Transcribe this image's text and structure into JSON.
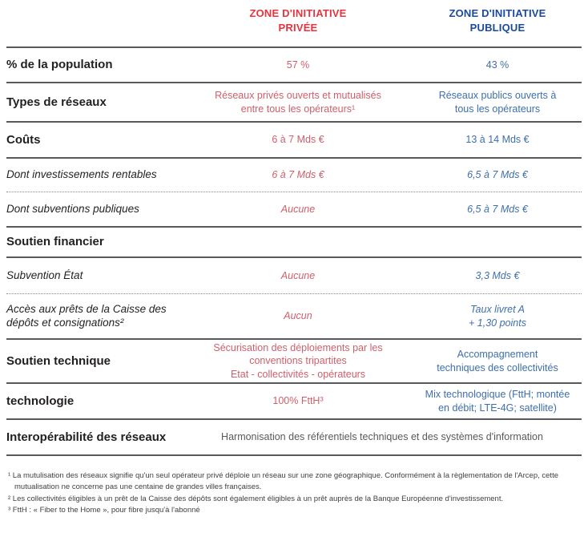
{
  "colors": {
    "private_header": "#e8333e",
    "public_header": "#1a4a9d",
    "private_value": "#cf5f6a",
    "public_value": "#3e6fad",
    "label_text": "#231f20",
    "neutral_value": "#58595b",
    "separator": "#58595b"
  },
  "header": {
    "private": "ZONE D'INITIATIVE\nPRIVÉE",
    "public": "ZONE D'INITIATIVE\nPUBLIQUE"
  },
  "rows": [
    {
      "label": "% de la population",
      "private": "57 %",
      "public": "43 %"
    },
    {
      "label": "Types de réseaux",
      "private": "Réseaux privés ouverts et mutualisés\nentre tous les opérateurs¹",
      "public": "Réseaux publics ouverts à\ntous les opérateurs"
    },
    {
      "label": "Coûts",
      "private": "6 à 7 Mds €",
      "public": "13 à 14 Mds €"
    },
    {
      "label": "Dont investissements rentables",
      "private": "6 à 7 Mds €",
      "public": "6,5 à 7 Mds €"
    },
    {
      "label": "Dont subventions publiques",
      "private": "Aucune",
      "public": "6,5 à 7 Mds €"
    },
    {
      "label": "Soutien financier"
    },
    {
      "label": "Subvention État",
      "private": "Aucune",
      "public": "3,3 Mds €"
    },
    {
      "label": "Accès aux prêts de la Caisse des\ndépôts et consignations²",
      "private": "Aucun",
      "public": "Taux livret A\n+ 1,30 points"
    },
    {
      "label": "Soutien technique",
      "private": "Sécurisation des déploiements par les\nconventions tripartites\nEtat - collectivités - opérateurs",
      "public": "Accompagnement\ntechniques des collectivités"
    },
    {
      "label": "technologie",
      "private": "100% FttH³",
      "public": "Mix technologique (FttH; montée\nen débit; LTE-4G; satellite)"
    },
    {
      "label": "Interopérabilité des réseaux",
      "span": "Harmonisation des référentiels techniques et des systèmes d'information"
    }
  ],
  "footnotes": [
    "¹ La mutulisation des réseaux signifie qu'un seul opérateur privé déploie un réseau sur une zone géographique. Conformément à la règlementation de l'Arcep, cette mutualisation ne concerne pas une centaine de grandes villes françaises.",
    "² Les collectivités éligibles à un prêt de la Caisse des dépôts sont également éligibles à un prêt auprès de la Banque Européenne d'investissement.",
    "³ FttH : « Fiber to the Home », pour fibre jusqu'à l'abonné"
  ]
}
